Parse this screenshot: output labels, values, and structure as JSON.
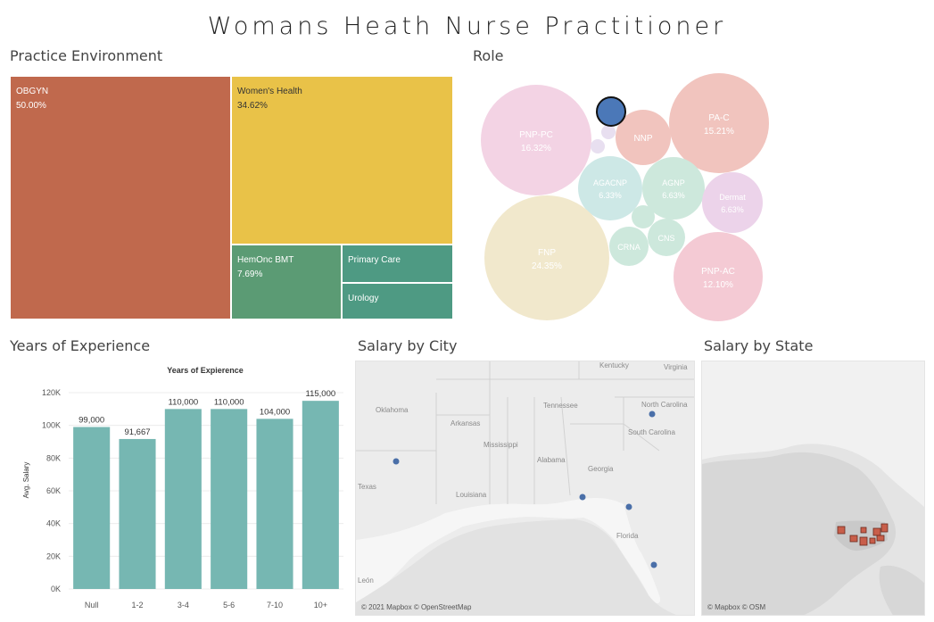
{
  "dashboard": {
    "title": "Womans Heath Nurse Practitioner"
  },
  "sections": {
    "practice": "Practice Environment",
    "role": "Role",
    "experience": "Years of Experience",
    "city": "Salary by City",
    "state": "Salary by State"
  },
  "chart_data": [
    {
      "type": "treemap",
      "title": "Practice Environment",
      "items": [
        {
          "name": "OBGYN",
          "value": 50.0,
          "label": "50.00%",
          "color": "#c0694d"
        },
        {
          "name": "Women's Health",
          "value": 34.62,
          "label": "34.62%",
          "color": "#e9c248"
        },
        {
          "name": "HemOnc BMT",
          "value": 7.69,
          "label": "7.69%",
          "color": "#5b9b74"
        },
        {
          "name": "Primary Care",
          "value": 3.85,
          "label": "",
          "color": "#4e9a83"
        },
        {
          "name": "Urology",
          "value": 3.85,
          "label": "",
          "color": "#4e9a83"
        }
      ]
    },
    {
      "type": "bubble",
      "title": "Role",
      "items": [
        {
          "name": "PNP-PC",
          "label": "16.32%",
          "color": "#f3d3e4"
        },
        {
          "name": "PA-C",
          "label": "15.21%",
          "color": "#f1c4be"
        },
        {
          "name": "NNP",
          "label": "",
          "color": "#f1c4be"
        },
        {
          "name": "AGACNP",
          "label": "6.33%",
          "color": "#cde8e6"
        },
        {
          "name": "AGNP",
          "label": "6.63%",
          "color": "#cde8dc"
        },
        {
          "name": "Dermat",
          "label": "6.63%",
          "color": "#ecd3ea"
        },
        {
          "name": "FNP",
          "label": "24.35%",
          "color": "#f1e8cc"
        },
        {
          "name": "CRNA",
          "label": "",
          "color": "#cde8dc"
        },
        {
          "name": "CNS",
          "label": "",
          "color": "#cde8dc"
        },
        {
          "name": "PNP-AC",
          "label": "12.10%",
          "color": "#f4cad4"
        },
        {
          "name": "",
          "label": "",
          "color": "#4b78b8"
        }
      ]
    },
    {
      "type": "bar",
      "title": "Years of Expierence",
      "ylabel": "Avg. Salary",
      "xlabel": "",
      "ylim": [
        0,
        120000
      ],
      "yticks": [
        0,
        20000,
        40000,
        60000,
        80000,
        100000,
        120000
      ],
      "ytick_labels": [
        "0K",
        "20K",
        "40K",
        "60K",
        "80K",
        "100K",
        "120K"
      ],
      "categories": [
        "Null",
        "1-2",
        "3-4",
        "5-6",
        "7-10",
        "10+"
      ],
      "values": [
        99000,
        91667,
        110000,
        110000,
        104000,
        115000
      ],
      "value_labels": [
        "99,000",
        "91,667",
        "110,000",
        "110,000",
        "104,000",
        "115,000"
      ],
      "color": "#76b7b2"
    },
    {
      "type": "map",
      "title": "Salary by City",
      "places": [
        "Kentucky",
        "Virginia",
        "North Carolina",
        "Oklahoma",
        "Tennessee",
        "South Carolina",
        "Arkansas",
        "Mississippi",
        "Alabama",
        "Georgia",
        "Texas",
        "Louisiana",
        "Florida",
        "León"
      ],
      "attribution": "© 2021 Mapbox © OpenStreetMap"
    },
    {
      "type": "map",
      "title": "Salary by State",
      "attribution": "© Mapbox © OSM"
    }
  ]
}
